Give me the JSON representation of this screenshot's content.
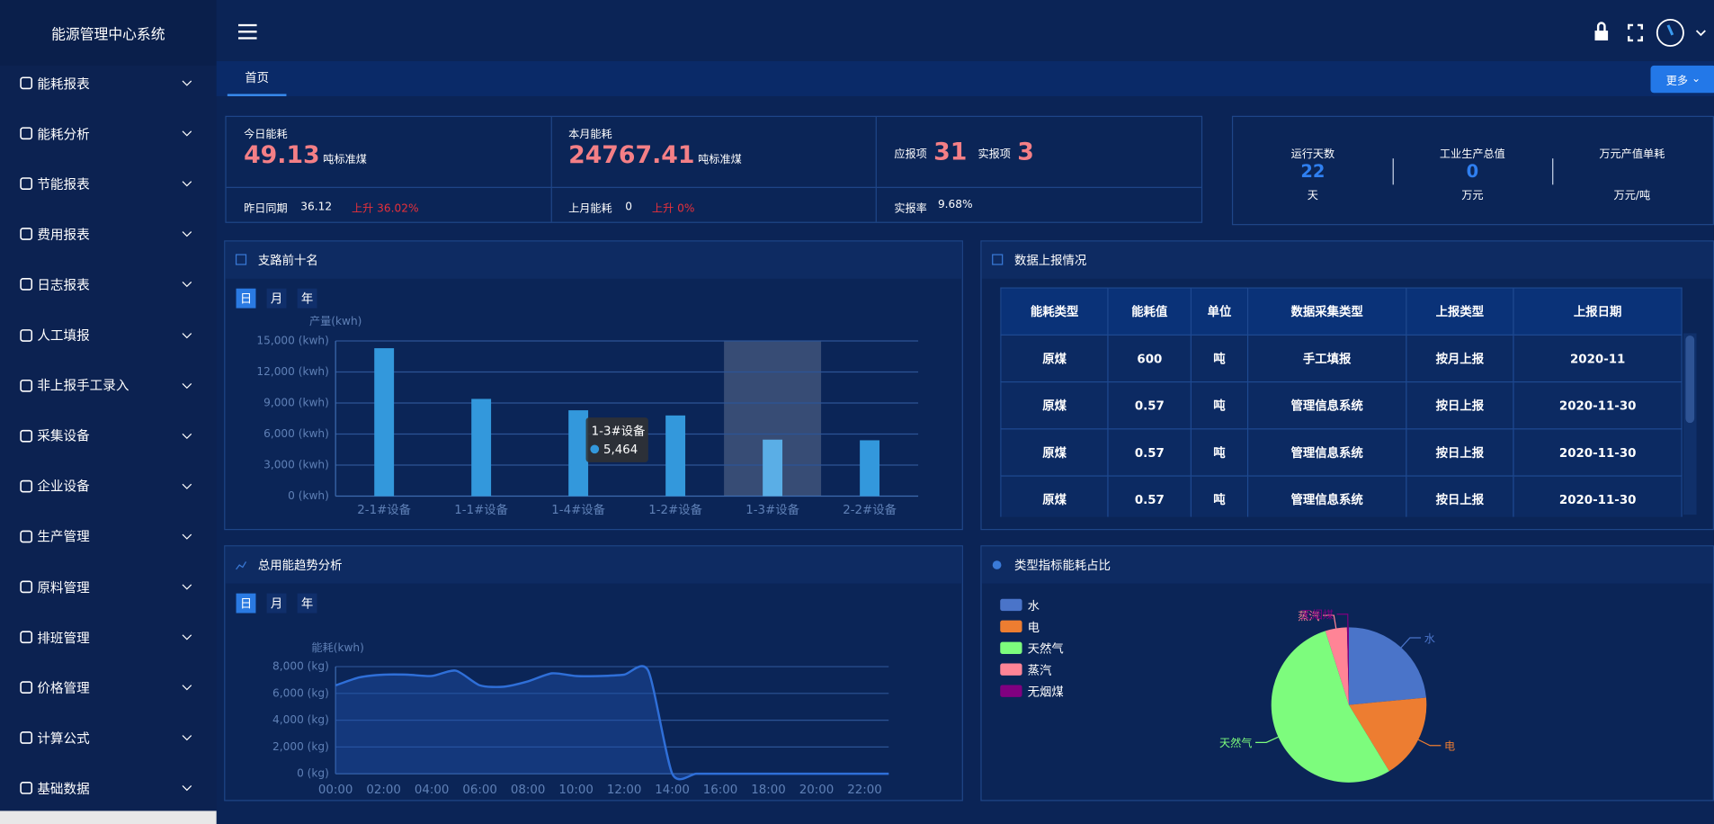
{
  "sidebar": {
    "title": "能源管理中心系统",
    "menu": [
      "能耗报表",
      "能耗分析",
      "节能报表",
      "费用报表",
      "日志报表",
      "人工填报",
      "非上报手工录入",
      "采集设备",
      "企业设备",
      "生产管理",
      "原料管理",
      "排班管理",
      "价格管理",
      "计算公式",
      "基础数据"
    ]
  },
  "header": {
    "tabs": [
      "首页"
    ],
    "more_button": "更多"
  },
  "stats": {
    "today": {
      "label": "今日能耗",
      "value": "49.13",
      "unit": "吨标准煤",
      "compare_label": "昨日同期",
      "compare_value": "36.12",
      "change": "上升 36.02%"
    },
    "month": {
      "label": "本月能耗",
      "value": "24767.41",
      "unit": "吨标准煤",
      "compare_label": "上月能耗",
      "compare_value": "0",
      "change": "上升 0%"
    },
    "report": {
      "expected_label": "应报项",
      "expected": "31",
      "actual_label": "实报项",
      "actual": "3",
      "rate_label": "实报率",
      "rate": "9.68%"
    }
  },
  "summary": [
    {
      "label": "运行天数",
      "value": "22",
      "unit": "天"
    },
    {
      "label": "工业生产总值",
      "value": "0",
      "unit": "万元"
    },
    {
      "label": "万元产值单耗",
      "unit": "万元/吨"
    }
  ],
  "branch_chart": {
    "type": "bar",
    "title": "支路前十名",
    "period_buttons": [
      "日",
      "月",
      "年"
    ],
    "y_label": "产量(kwh)",
    "categories": [
      "2-1#设备",
      "1-1#设备",
      "1-4#设备",
      "1-2#设备",
      "1-3#设备",
      "2-2#设备"
    ],
    "values": [
      14300,
      9400,
      8300,
      7800,
      5464,
      5400
    ],
    "color": "#3398dc",
    "ylim": [
      0,
      15000
    ],
    "yticks": [
      {
        "value": 0,
        "label": "0 (kwh)"
      },
      {
        "value": 3000,
        "label": "3,000 (kwh)"
      },
      {
        "value": 6000,
        "label": "6,000 (kwh)"
      },
      {
        "value": 9000,
        "label": "9,000 (kwh)"
      },
      {
        "value": 12000,
        "label": "12,000 (kwh)"
      },
      {
        "value": 15000,
        "label": "15,000 (kwh)"
      }
    ],
    "grid": true,
    "tooltip": {
      "category": "1-3#设备",
      "value_label": "5,464"
    }
  },
  "report_table": {
    "title": "数据上报情况",
    "columns": [
      "能耗类型",
      "能耗值",
      "单位",
      "数据采集类型",
      "上报类型",
      "上报日期"
    ],
    "rows": [
      [
        "原煤",
        "600",
        "吨",
        "手工填报",
        "按月上报",
        "2020-11"
      ],
      [
        "原煤",
        "0.57",
        "吨",
        "管理信息系统",
        "按日上报",
        "2020-11-30"
      ],
      [
        "原煤",
        "0.57",
        "吨",
        "管理信息系统",
        "按日上报",
        "2020-11-30"
      ],
      [
        "原煤",
        "0.57",
        "吨",
        "管理信息系统",
        "按日上报",
        "2020-11-30"
      ]
    ]
  },
  "trend_chart": {
    "type": "line",
    "title": "总用能趋势分析",
    "period_buttons": [
      "日",
      "月",
      "年"
    ],
    "y_label": "能耗(kwh)",
    "categories": [
      "00:00",
      null,
      "02:00",
      null,
      "04:00",
      null,
      "06:00",
      null,
      "08:00",
      null,
      "10:00",
      null,
      "12:00",
      null,
      "14:00",
      null,
      "16:00",
      null,
      "18:00",
      null,
      "20:00",
      null,
      "22:00",
      null
    ],
    "values": [
      6600,
      7200,
      7400,
      7400,
      7300,
      7700,
      6600,
      6500,
      6900,
      7500,
      7300,
      7300,
      7400,
      7700,
      0,
      0,
      0,
      0,
      0,
      0,
      0,
      0,
      0,
      0
    ],
    "color": "#2f6fd8",
    "ylim": [
      0,
      8000
    ],
    "yticks": [
      {
        "value": 0,
        "label": "0 (kg)"
      },
      {
        "value": 2000,
        "label": "2,000 (kg)"
      },
      {
        "value": 4000,
        "label": "4,000 (kg)"
      },
      {
        "value": 6000,
        "label": "6,000 (kg)"
      },
      {
        "value": 8000,
        "label": "8,000 (kg)"
      }
    ],
    "grid": true
  },
  "share_chart": {
    "type": "pie",
    "title": "类型指标能耗占比",
    "categories": [
      "水",
      "电",
      "天然气",
      "蒸汽",
      "无烟煤"
    ],
    "values": [
      23.5,
      17.8,
      53.8,
      4.5,
      0.4
    ],
    "colors": [
      "#4a74c9",
      "#ed7d31",
      "#7dfc7d",
      "#ff8496",
      "#800080"
    ]
  }
}
